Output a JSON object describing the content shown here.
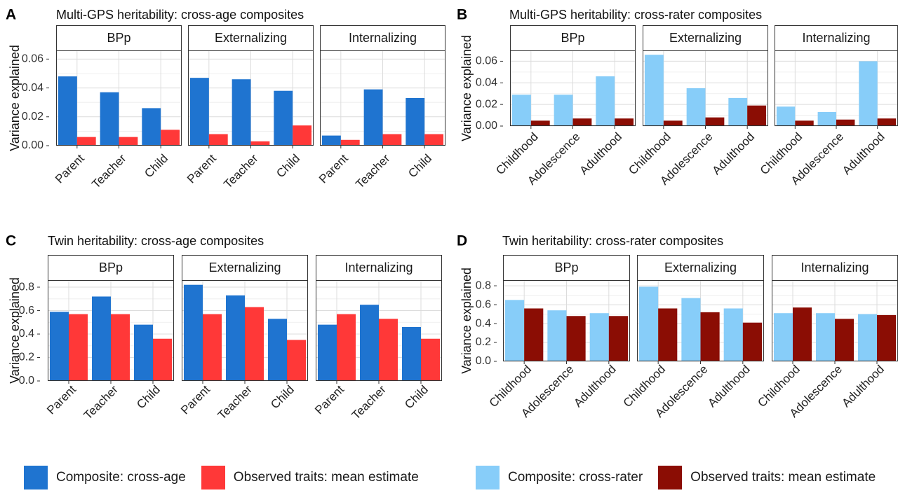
{
  "colors": {
    "composite_age": "#1f74d0",
    "composite_rater": "#87cdf9",
    "observed_age": "#ff3838",
    "observed_rater": "#8b0d04",
    "strip_bg": "#ffffff",
    "grid": "#dcdcdc"
  },
  "legends": {
    "left": [
      {
        "label": "Composite: cross-age",
        "color": "#1f74d0"
      },
      {
        "label": "Observed traits: mean estimate",
        "color": "#ff3838"
      }
    ],
    "right": [
      {
        "label": "Composite: cross-rater",
        "color": "#87cdf9"
      },
      {
        "label": "Observed traits: mean estimate",
        "color": "#8b0d04"
      }
    ]
  },
  "chart_data": [
    {
      "panel": "A",
      "title": "Multi-GPS heritability: cross-age composites",
      "type": "bar",
      "ylabel": "Variance explained",
      "ylim": [
        0,
        0.066
      ],
      "yticks": [
        "0.00",
        "0.02",
        "0.04",
        "0.06"
      ],
      "ytick_values": [
        0,
        0.02,
        0.04,
        0.06
      ],
      "categories": [
        "Parent",
        "Teacher",
        "Child"
      ],
      "series_names": [
        "Composite: cross-age",
        "Observed traits: mean estimate"
      ],
      "facets": [
        {
          "name": "BPp",
          "composite": [
            0.048,
            0.037,
            0.026
          ],
          "observed": [
            0.006,
            0.006,
            0.011
          ]
        },
        {
          "name": "Externalizing",
          "composite": [
            0.047,
            0.046,
            0.038
          ],
          "observed": [
            0.008,
            0.003,
            0.014
          ]
        },
        {
          "name": "Internalizing",
          "composite": [
            0.007,
            0.039,
            0.033
          ],
          "observed": [
            0.004,
            0.008,
            0.008
          ]
        }
      ]
    },
    {
      "panel": "B",
      "title": "Multi-GPS heritability: cross-rater composites",
      "type": "bar",
      "ylabel": "Variance explained",
      "ylim": [
        0,
        0.07
      ],
      "yticks": [
        "0.00",
        "0.02",
        "0.04",
        "0.06"
      ],
      "ytick_values": [
        0,
        0.02,
        0.04,
        0.06
      ],
      "categories": [
        "Childhood",
        "Adolescence",
        "Adulthood"
      ],
      "series_names": [
        "Composite: cross-rater",
        "Observed traits: mean estimate"
      ],
      "facets": [
        {
          "name": "BPp",
          "composite": [
            0.029,
            0.029,
            0.046
          ],
          "observed": [
            0.005,
            0.007,
            0.007
          ]
        },
        {
          "name": "Externalizing",
          "composite": [
            0.066,
            0.035,
            0.026
          ],
          "observed": [
            0.005,
            0.008,
            0.019
          ]
        },
        {
          "name": "Internalizing",
          "composite": [
            0.018,
            0.013,
            0.06
          ],
          "observed": [
            0.005,
            0.006,
            0.007
          ]
        }
      ]
    },
    {
      "panel": "C",
      "title": "Twin heritability: cross-age composites",
      "type": "bar",
      "ylabel": "Variance explained",
      "ylim": [
        0,
        0.86
      ],
      "yticks": [
        "0.0",
        "0.2",
        "0.4",
        "0.6",
        "0.8"
      ],
      "ytick_values": [
        0,
        0.2,
        0.4,
        0.6,
        0.8
      ],
      "categories": [
        "Parent",
        "Teacher",
        "Child"
      ],
      "series_names": [
        "Composite: cross-age",
        "Observed traits: mean estimate"
      ],
      "facets": [
        {
          "name": "BPp",
          "composite": [
            0.59,
            0.72,
            0.48
          ],
          "observed": [
            0.57,
            0.57,
            0.36
          ]
        },
        {
          "name": "Externalizing",
          "composite": [
            0.82,
            0.73,
            0.53
          ],
          "observed": [
            0.57,
            0.63,
            0.35
          ]
        },
        {
          "name": "Internalizing",
          "composite": [
            0.48,
            0.65,
            0.46
          ],
          "observed": [
            0.57,
            0.53,
            0.36
          ]
        }
      ]
    },
    {
      "panel": "D",
      "title": "Twin heritability: cross-rater composites",
      "type": "bar",
      "ylabel": "Variance explained",
      "ylim": [
        0,
        0.86
      ],
      "yticks": [
        "0.0",
        "0.2",
        "0.4",
        "0.6",
        "0.8"
      ],
      "ytick_values": [
        0,
        0.2,
        0.4,
        0.6,
        0.8
      ],
      "categories": [
        "Childhood",
        "Adolescence",
        "Adulthood"
      ],
      "series_names": [
        "Composite: cross-rater",
        "Observed traits: mean estimate"
      ],
      "facets": [
        {
          "name": "BPp",
          "composite": [
            0.65,
            0.54,
            0.51
          ],
          "observed": [
            0.56,
            0.48,
            0.48
          ]
        },
        {
          "name": "Externalizing",
          "composite": [
            0.79,
            0.67,
            0.56
          ],
          "observed": [
            0.56,
            0.52,
            0.41
          ]
        },
        {
          "name": "Internalizing",
          "composite": [
            0.51,
            0.51,
            0.5
          ],
          "observed": [
            0.57,
            0.45,
            0.49
          ]
        }
      ]
    }
  ]
}
